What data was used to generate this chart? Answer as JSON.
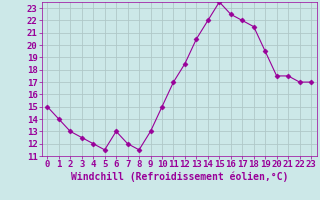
{
  "x": [
    0,
    1,
    2,
    3,
    4,
    5,
    6,
    7,
    8,
    9,
    10,
    11,
    12,
    13,
    14,
    15,
    16,
    17,
    18,
    19,
    20,
    21,
    22,
    23
  ],
  "y": [
    15,
    14,
    13,
    12.5,
    12,
    11.5,
    13,
    12,
    11.5,
    13,
    15,
    17,
    18.5,
    20.5,
    22,
    23.5,
    22.5,
    22,
    21.5,
    19.5,
    17.5,
    17.5,
    17,
    17
  ],
  "line_color": "#990099",
  "marker": "D",
  "marker_size": 2.5,
  "bg_color": "#cce8e8",
  "grid_color": "#b0c8c8",
  "xlabel": "Windchill (Refroidissement éolien,°C)",
  "xlabel_fontsize": 7,
  "xlabel_color": "#990099",
  "tick_fontsize": 6.5,
  "tick_color": "#990099",
  "ylim": [
    11,
    23.5
  ],
  "xlim": [
    -0.5,
    23.5
  ],
  "yticks": [
    11,
    12,
    13,
    14,
    15,
    16,
    17,
    18,
    19,
    20,
    21,
    22,
    23
  ],
  "xticks": [
    0,
    1,
    2,
    3,
    4,
    5,
    6,
    7,
    8,
    9,
    10,
    11,
    12,
    13,
    14,
    15,
    16,
    17,
    18,
    19,
    20,
    21,
    22,
    23
  ]
}
